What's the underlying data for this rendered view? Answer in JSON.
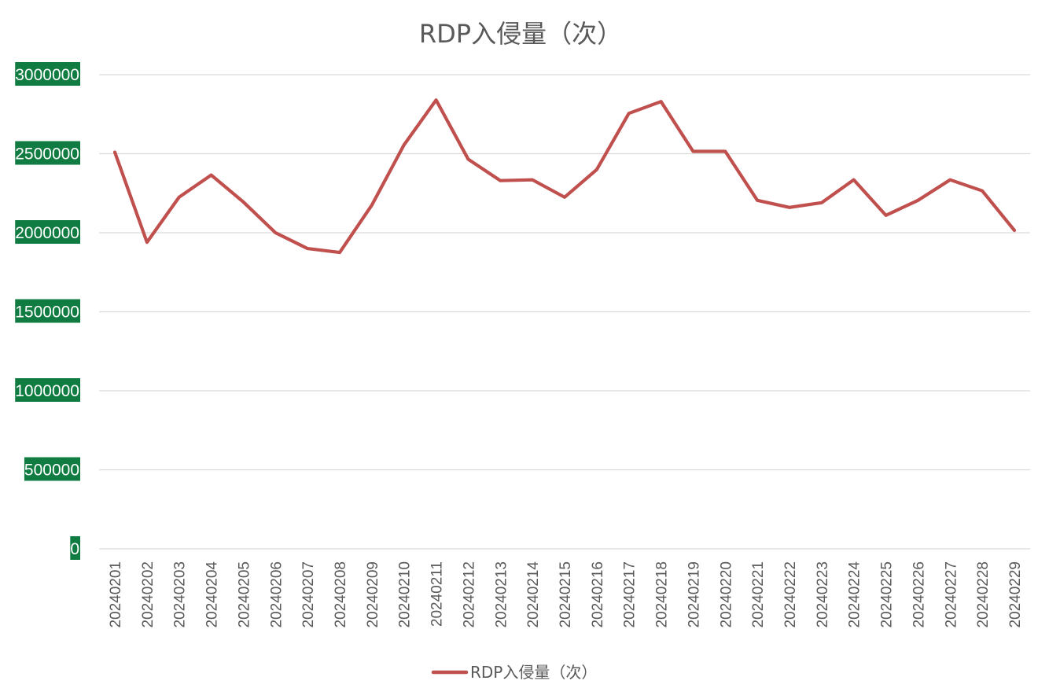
{
  "chart_data": {
    "type": "line",
    "title": "RDP入侵量（次）",
    "xlabel": "",
    "ylabel": "",
    "categories": [
      "20240201",
      "20240202",
      "20240203",
      "20240204",
      "20240205",
      "20240206",
      "20240207",
      "20240208",
      "20240209",
      "20240210",
      "20240211",
      "20240212",
      "20240213",
      "20240214",
      "20240215",
      "20240216",
      "20240217",
      "20240218",
      "20240219",
      "20240220",
      "20240221",
      "20240222",
      "20240223",
      "20240224",
      "20240225",
      "20240226",
      "20240227",
      "20240228",
      "20240229"
    ],
    "series": [
      {
        "name": "RDP入侵量（次）",
        "color": "#c0504d",
        "values": [
          2510000,
          1940000,
          2225000,
          2365000,
          2195000,
          2000000,
          1900000,
          1875000,
          2175000,
          2555000,
          2840000,
          2465000,
          2330000,
          2335000,
          2225000,
          2400000,
          2755000,
          2830000,
          2515000,
          2515000,
          2205000,
          2160000,
          2190000,
          2335000,
          2110000,
          2205000,
          2335000,
          2265000,
          2015000
        ]
      }
    ],
    "ylim": [
      0,
      3000000
    ],
    "yticks": [
      "0",
      "500000",
      "1000000",
      "1500000",
      "2000000",
      "2500000",
      "3000000"
    ],
    "grid": true,
    "legend_position": "bottom"
  }
}
